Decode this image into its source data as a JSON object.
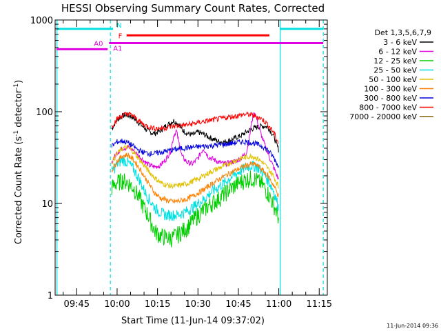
{
  "chart_data": {
    "type": "line",
    "title": "HESSI Observing Summary Count Rates, Corrected",
    "xlabel": "Start Time (11-Jun-14 09:37:02)",
    "ylabel": "Corrected Count Rate (s",
    "ylabel_sup1": "-1",
    "ylabel_mid": " detector",
    "ylabel_sup2": "-1",
    "ylabel_end": ")",
    "yscale": "log",
    "xlim_minutes": [
      37.0,
      138.0
    ],
    "ylim": [
      1,
      1000
    ],
    "xticks": [
      {
        "label": "09:45",
        "minute": 45
      },
      {
        "label": "10:00",
        "minute": 60
      },
      {
        "label": "10:15",
        "minute": 75
      },
      {
        "label": "10:30",
        "minute": 90
      },
      {
        "label": "10:45",
        "minute": 105
      },
      {
        "label": "11:00",
        "minute": 120
      },
      {
        "label": "11:15",
        "minute": 135
      }
    ],
    "yticks": [
      {
        "label": "1",
        "value": 1
      },
      {
        "label": "10",
        "value": 10
      },
      {
        "label": "100",
        "value": 100
      },
      {
        "label": "1000",
        "value": 1000
      }
    ],
    "legend": {
      "title": "Det 1,3,5,6,7,9",
      "position": "right"
    },
    "series": [
      {
        "name": "3 - 6 keV",
        "color": "#000000",
        "x": [
          58,
          60,
          62,
          64,
          66,
          68,
          70,
          72,
          74,
          76,
          78,
          80,
          81,
          82,
          83,
          84,
          86,
          88,
          90,
          92,
          94,
          96,
          98,
          100,
          102,
          104,
          106,
          108,
          110,
          112,
          114,
          116,
          118,
          120
        ],
        "values": [
          65,
          82,
          90,
          92,
          86,
          76,
          67,
          60,
          58,
          62,
          70,
          76,
          80,
          76,
          72,
          64,
          58,
          56,
          60,
          57,
          53,
          50,
          47,
          47,
          49,
          52,
          55,
          60,
          65,
          68,
          70,
          68,
          55,
          38
        ]
      },
      {
        "name": "6 - 12 keV",
        "color": "#e000e0",
        "x": [
          58,
          60,
          62,
          64,
          66,
          68,
          70,
          72,
          74,
          76,
          78,
          80,
          81,
          82,
          83,
          84,
          86,
          88,
          90,
          92,
          94,
          96,
          98,
          100,
          102,
          104,
          106,
          108,
          109,
          110,
          111,
          112,
          114,
          116,
          118,
          120
        ],
        "values": [
          28,
          36,
          40,
          41,
          38,
          33,
          29,
          26,
          25,
          26,
          30,
          38,
          55,
          62,
          45,
          33,
          28,
          27,
          31,
          40,
          32,
          30,
          28,
          27,
          28,
          29,
          31,
          36,
          50,
          80,
          100,
          80,
          50,
          35,
          25,
          18
        ]
      },
      {
        "name": "12 - 25 keV",
        "color": "#00d000",
        "x": [
          58,
          60,
          62,
          64,
          66,
          68,
          70,
          72,
          74,
          76,
          78,
          80,
          82,
          84,
          86,
          88,
          90,
          92,
          94,
          96,
          98,
          100,
          102,
          104,
          106,
          108,
          110,
          112,
          114,
          116,
          118,
          120
        ],
        "values": [
          15,
          17,
          18,
          17,
          15,
          12,
          9,
          7,
          5,
          4.5,
          4.3,
          4.2,
          4.5,
          5,
          5.5,
          6.5,
          7.5,
          8.5,
          9.5,
          10.5,
          11.5,
          13,
          14.5,
          16,
          17.5,
          18.5,
          19,
          18,
          16,
          13,
          10,
          7
        ]
      },
      {
        "name": "25 - 50 keV",
        "color": "#00e0e0",
        "x": [
          58,
          60,
          62,
          64,
          66,
          68,
          70,
          72,
          74,
          76,
          78,
          80,
          82,
          84,
          86,
          88,
          90,
          92,
          94,
          96,
          98,
          100,
          102,
          104,
          106,
          108,
          110,
          112,
          114,
          116,
          118,
          120
        ],
        "values": [
          22,
          27,
          30,
          28,
          24,
          19,
          14,
          11,
          9,
          8,
          7.5,
          7.5,
          7.5,
          7.8,
          8.3,
          9,
          10,
          11,
          12.5,
          14,
          15.5,
          17,
          19,
          21,
          23,
          25,
          26,
          25,
          22,
          18,
          14,
          9
        ]
      },
      {
        "name": "50 - 100 keV",
        "color": "#e0c000",
        "x": [
          58,
          60,
          62,
          64,
          66,
          68,
          70,
          72,
          74,
          76,
          78,
          80,
          82,
          84,
          86,
          88,
          90,
          92,
          94,
          96,
          98,
          100,
          102,
          104,
          106,
          108,
          110,
          112,
          114,
          116,
          118,
          120
        ],
        "values": [
          28,
          35,
          40,
          41,
          37,
          31,
          26,
          22,
          19,
          17,
          16,
          15.5,
          15.5,
          16,
          16.5,
          17.5,
          18.5,
          20,
          21.5,
          23,
          24.5,
          26,
          28,
          29.5,
          31,
          32,
          33,
          31,
          28,
          24,
          20,
          15
        ]
      },
      {
        "name": "100 - 300 keV",
        "color": "#ff8000",
        "x": [
          58,
          60,
          62,
          64,
          66,
          68,
          70,
          72,
          74,
          76,
          78,
          80,
          82,
          84,
          86,
          88,
          90,
          92,
          94,
          96,
          98,
          100,
          102,
          104,
          106,
          108,
          110,
          112,
          114,
          116,
          118,
          120
        ],
        "values": [
          23,
          29,
          33,
          34,
          30,
          25,
          20,
          16,
          13,
          11.5,
          11,
          10.5,
          10.5,
          10.8,
          11.2,
          12,
          13,
          14,
          15.5,
          17,
          18.5,
          20,
          21.5,
          23,
          24.5,
          26,
          27,
          26,
          23,
          20,
          16,
          12
        ]
      },
      {
        "name": "300 - 800 keV",
        "color": "#0000e0",
        "x": [
          58,
          60,
          62,
          64,
          66,
          68,
          70,
          72,
          74,
          76,
          78,
          80,
          82,
          84,
          86,
          88,
          90,
          92,
          94,
          96,
          98,
          100,
          102,
          104,
          106,
          108,
          110,
          112,
          114,
          116,
          118,
          120
        ],
        "values": [
          42,
          47,
          48,
          46,
          42,
          38,
          36,
          35,
          35,
          36,
          37,
          38,
          39,
          40,
          40.5,
          41,
          41.5,
          42,
          42.5,
          43,
          43.5,
          44,
          45,
          46,
          47,
          47,
          46,
          44,
          42,
          38,
          32,
          25
        ]
      },
      {
        "name": "800 - 7000 keV",
        "color": "#ff0000",
        "x": [
          58,
          60,
          62,
          64,
          66,
          68,
          70,
          72,
          74,
          76,
          78,
          80,
          82,
          84,
          86,
          88,
          90,
          92,
          94,
          96,
          98,
          100,
          102,
          104,
          106,
          108,
          110,
          112,
          114,
          116,
          118,
          120
        ],
        "values": [
          70,
          83,
          92,
          95,
          90,
          80,
          72,
          68,
          66,
          66,
          67,
          69,
          70,
          71,
          72,
          74,
          76,
          78,
          80,
          82,
          84,
          86,
          88,
          90,
          92,
          94,
          92,
          88,
          82,
          72,
          60,
          45
        ]
      },
      {
        "name": "7000 - 20000 keV",
        "color": "#806000",
        "x": [],
        "values": []
      }
    ],
    "annotations": [
      {
        "label": "N",
        "color": "#00e0e0",
        "segments": [
          [
            37.5,
            58.5
          ],
          [
            120.5,
            136.5
          ]
        ],
        "value": 800
      },
      {
        "label": "F",
        "color": "#ff0000",
        "segments": [
          [
            63.5,
            116.5
          ]
        ],
        "value": 680
      },
      {
        "label": "A0",
        "color": "#e000e0",
        "segments": [
          [
            37.5,
            56.5
          ]
        ],
        "value": 480
      },
      {
        "label": "A1",
        "color": "#e000e0",
        "segments": [
          [
            57.0,
            136.5
          ]
        ],
        "value": 560
      }
    ],
    "vertical_markers": [
      {
        "minute": 37.7,
        "style": "solid",
        "color": "#00e0e0"
      },
      {
        "minute": 57.5,
        "style": "dashed",
        "color": "#00e0e0"
      },
      {
        "minute": 120.5,
        "style": "solid",
        "color": "#00e0e0"
      },
      {
        "minute": 136.5,
        "style": "dashed",
        "color": "#00e0e0"
      }
    ]
  },
  "timestamp": "11-Jun-2014 09:36"
}
